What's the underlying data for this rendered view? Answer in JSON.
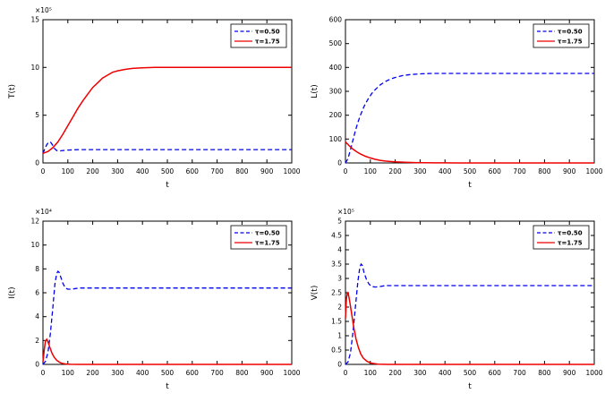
{
  "figure": {
    "background": "#ffffff",
    "axis_color": "#000000"
  },
  "colors": {
    "series_blue": "#0000ee",
    "series_red": "#ee0000"
  },
  "chart_data": [
    {
      "type": "line",
      "title": "",
      "xlabel": "t",
      "ylabel": "T(t)",
      "y_exp": "×10⁵",
      "xlim": [
        0,
        1000
      ],
      "ylim": [
        0,
        15
      ],
      "xticks": [
        0,
        100,
        200,
        300,
        400,
        500,
        600,
        700,
        800,
        900,
        1000
      ],
      "yticks": [
        0,
        5,
        10,
        15
      ],
      "grid": false,
      "legend_position": "top-right",
      "series": [
        {
          "name": "τ=0.50",
          "color": "#0000ee",
          "dash": true,
          "points": [
            [
              0,
              1.0
            ],
            [
              8,
              1.5
            ],
            [
              15,
              1.9
            ],
            [
              22,
              2.15
            ],
            [
              30,
              2.2
            ],
            [
              38,
              1.9
            ],
            [
              45,
              1.55
            ],
            [
              55,
              1.3
            ],
            [
              65,
              1.25
            ],
            [
              80,
              1.3
            ],
            [
              100,
              1.35
            ],
            [
              150,
              1.4
            ],
            [
              200,
              1.4
            ],
            [
              300,
              1.4
            ],
            [
              400,
              1.4
            ],
            [
              500,
              1.4
            ],
            [
              600,
              1.4
            ],
            [
              700,
              1.4
            ],
            [
              800,
              1.4
            ],
            [
              900,
              1.4
            ],
            [
              1000,
              1.4
            ]
          ]
        },
        {
          "name": "τ=1.75",
          "color": "#ee0000",
          "dash": false,
          "points": [
            [
              0,
              1.0
            ],
            [
              20,
              1.2
            ],
            [
              40,
              1.6
            ],
            [
              60,
              2.2
            ],
            [
              80,
              3.0
            ],
            [
              100,
              3.9
            ],
            [
              120,
              4.8
            ],
            [
              140,
              5.7
            ],
            [
              160,
              6.5
            ],
            [
              180,
              7.2
            ],
            [
              200,
              7.9
            ],
            [
              220,
              8.4
            ],
            [
              240,
              8.9
            ],
            [
              260,
              9.2
            ],
            [
              280,
              9.5
            ],
            [
              300,
              9.65
            ],
            [
              330,
              9.8
            ],
            [
              360,
              9.9
            ],
            [
              400,
              9.97
            ],
            [
              450,
              10
            ],
            [
              500,
              10
            ],
            [
              600,
              10
            ],
            [
              700,
              10
            ],
            [
              800,
              10
            ],
            [
              900,
              10
            ],
            [
              1000,
              10
            ]
          ]
        }
      ]
    },
    {
      "type": "line",
      "title": "",
      "xlabel": "t",
      "ylabel": "L(t)",
      "y_exp": "",
      "xlim": [
        0,
        1000
      ],
      "ylim": [
        0,
        600
      ],
      "xticks": [
        0,
        100,
        200,
        300,
        400,
        500,
        600,
        700,
        800,
        900,
        1000
      ],
      "yticks": [
        0,
        100,
        200,
        300,
        400,
        500,
        600
      ],
      "grid": false,
      "legend_position": "top-right",
      "series": [
        {
          "name": "τ=0.50",
          "color": "#0000ee",
          "dash": true,
          "points": [
            [
              0,
              0
            ],
            [
              10,
              18
            ],
            [
              20,
              55
            ],
            [
              30,
              95
            ],
            [
              40,
              135
            ],
            [
              50,
              170
            ],
            [
              60,
              200
            ],
            [
              75,
              237
            ],
            [
              90,
              266
            ],
            [
              105,
              290
            ],
            [
              120,
              308
            ],
            [
              140,
              327
            ],
            [
              160,
              341
            ],
            [
              180,
              351
            ],
            [
              200,
              358
            ],
            [
              230,
              366
            ],
            [
              260,
              370
            ],
            [
              300,
              373
            ],
            [
              350,
              375
            ],
            [
              400,
              375
            ],
            [
              500,
              375
            ],
            [
              600,
              375
            ],
            [
              700,
              375
            ],
            [
              800,
              375
            ],
            [
              900,
              375
            ],
            [
              1000,
              375
            ]
          ]
        },
        {
          "name": "τ=1.75",
          "color": "#ee0000",
          "dash": false,
          "points": [
            [
              0,
              88
            ],
            [
              15,
              72
            ],
            [
              30,
              58
            ],
            [
              45,
              47
            ],
            [
              60,
              38
            ],
            [
              80,
              28
            ],
            [
              100,
              21
            ],
            [
              120,
              15
            ],
            [
              140,
              11
            ],
            [
              160,
              8
            ],
            [
              180,
              6
            ],
            [
              200,
              4.5
            ],
            [
              240,
              2.5
            ],
            [
              280,
              1.4
            ],
            [
              320,
              0.8
            ],
            [
              360,
              0.4
            ],
            [
              400,
              0.2
            ],
            [
              500,
              0.05
            ],
            [
              600,
              0
            ],
            [
              700,
              0
            ],
            [
              800,
              0
            ],
            [
              900,
              0
            ],
            [
              1000,
              0
            ]
          ]
        }
      ]
    },
    {
      "type": "line",
      "title": "",
      "xlabel": "t",
      "ylabel": "I(t)",
      "y_exp": "×10⁴",
      "xlim": [
        0,
        1000
      ],
      "ylim": [
        0,
        12
      ],
      "xticks": [
        0,
        100,
        200,
        300,
        400,
        500,
        600,
        700,
        800,
        900,
        1000
      ],
      "yticks": [
        0,
        2,
        4,
        6,
        8,
        10,
        12
      ],
      "grid": false,
      "legend_position": "top-right",
      "series": [
        {
          "name": "τ=0.50",
          "color": "#0000ee",
          "dash": true,
          "points": [
            [
              0,
              0
            ],
            [
              10,
              0.25
            ],
            [
              20,
              1.0
            ],
            [
              30,
              2.6
            ],
            [
              40,
              4.8
            ],
            [
              48,
              6.7
            ],
            [
              55,
              7.6
            ],
            [
              60,
              7.8
            ],
            [
              65,
              7.7
            ],
            [
              72,
              7.3
            ],
            [
              80,
              6.8
            ],
            [
              90,
              6.4
            ],
            [
              100,
              6.3
            ],
            [
              115,
              6.3
            ],
            [
              130,
              6.35
            ],
            [
              150,
              6.4
            ],
            [
              200,
              6.4
            ],
            [
              300,
              6.4
            ],
            [
              400,
              6.4
            ],
            [
              500,
              6.4
            ],
            [
              600,
              6.4
            ],
            [
              700,
              6.4
            ],
            [
              800,
              6.4
            ],
            [
              900,
              6.4
            ],
            [
              1000,
              6.4
            ]
          ]
        },
        {
          "name": "τ=1.75",
          "color": "#ee0000",
          "dash": false,
          "points": [
            [
              0,
              0.2
            ],
            [
              5,
              1.2
            ],
            [
              10,
              1.95
            ],
            [
              15,
              2.1
            ],
            [
              20,
              1.9
            ],
            [
              28,
              1.4
            ],
            [
              36,
              0.95
            ],
            [
              45,
              0.6
            ],
            [
              55,
              0.35
            ],
            [
              65,
              0.2
            ],
            [
              75,
              0.1
            ],
            [
              90,
              0.04
            ],
            [
              110,
              0.01
            ],
            [
              150,
              0
            ],
            [
              200,
              0
            ],
            [
              300,
              0
            ],
            [
              400,
              0
            ],
            [
              500,
              0
            ],
            [
              700,
              0
            ],
            [
              1000,
              0
            ]
          ]
        }
      ]
    },
    {
      "type": "line",
      "title": "",
      "xlabel": "t",
      "ylabel": "V(t)",
      "y_exp": "×10⁵",
      "xlim": [
        0,
        1000
      ],
      "ylim": [
        0,
        5
      ],
      "xticks": [
        0,
        100,
        200,
        300,
        400,
        500,
        600,
        700,
        800,
        900,
        1000
      ],
      "yticks": [
        0,
        0.5,
        1,
        1.5,
        2,
        2.5,
        3,
        3.5,
        4,
        4.5,
        5
      ],
      "grid": false,
      "legend_position": "top-right",
      "series": [
        {
          "name": "τ=0.50",
          "color": "#0000ee",
          "dash": true,
          "points": [
            [
              0,
              0
            ],
            [
              10,
              0.08
            ],
            [
              20,
              0.4
            ],
            [
              30,
              1.1
            ],
            [
              40,
              2.0
            ],
            [
              50,
              2.9
            ],
            [
              58,
              3.4
            ],
            [
              63,
              3.5
            ],
            [
              68,
              3.45
            ],
            [
              75,
              3.2
            ],
            [
              85,
              2.95
            ],
            [
              95,
              2.8
            ],
            [
              105,
              2.72
            ],
            [
              120,
              2.7
            ],
            [
              140,
              2.72
            ],
            [
              160,
              2.75
            ],
            [
              200,
              2.75
            ],
            [
              300,
              2.75
            ],
            [
              400,
              2.75
            ],
            [
              500,
              2.75
            ],
            [
              600,
              2.75
            ],
            [
              700,
              2.75
            ],
            [
              800,
              2.75
            ],
            [
              900,
              2.75
            ],
            [
              1000,
              2.75
            ]
          ]
        },
        {
          "name": "τ=1.75",
          "color": "#ee0000",
          "dash": false,
          "points": [
            [
              0,
              1.6
            ],
            [
              4,
              2.3
            ],
            [
              8,
              2.5
            ],
            [
              12,
              2.45
            ],
            [
              18,
              2.15
            ],
            [
              25,
              1.75
            ],
            [
              33,
              1.3
            ],
            [
              42,
              0.9
            ],
            [
              52,
              0.58
            ],
            [
              62,
              0.36
            ],
            [
              72,
              0.22
            ],
            [
              85,
              0.12
            ],
            [
              100,
              0.05
            ],
            [
              130,
              0.01
            ],
            [
              170,
              0
            ],
            [
              250,
              0
            ],
            [
              400,
              0
            ],
            [
              700,
              0
            ],
            [
              1000,
              0
            ]
          ]
        }
      ]
    }
  ]
}
